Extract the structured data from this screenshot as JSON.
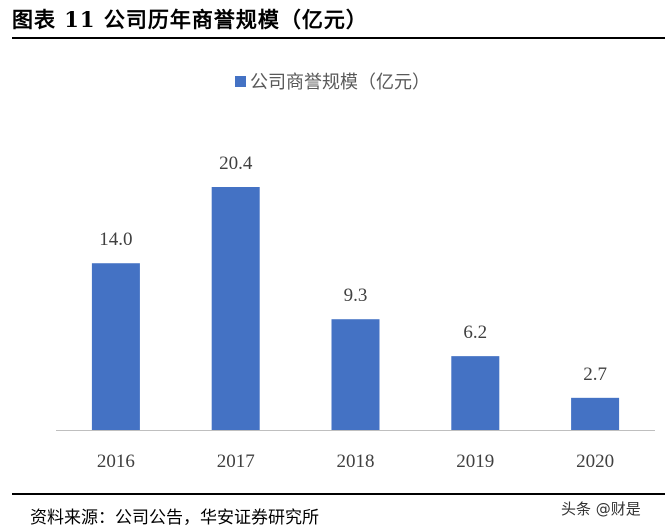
{
  "title": "图表 11 公司历年商誉规模（亿元）",
  "source": "资料来源：公司公告，华安证券研究所",
  "watermark": "头条 @财是",
  "colors": {
    "bar": "#4472C4",
    "axis": "#BFBFBF",
    "label": "#404040"
  },
  "chart_data": {
    "type": "bar",
    "title": "",
    "categories": [
      "2016",
      "2017",
      "2018",
      "2019",
      "2020"
    ],
    "series": [
      {
        "name": "公司商誉规模（亿元）",
        "values": [
          14.0,
          20.4,
          9.3,
          6.2,
          2.7
        ]
      }
    ],
    "data_labels": [
      "14.0",
      "20.4",
      "9.3",
      "6.2",
      "2.7"
    ],
    "xlabel": "",
    "ylabel": "",
    "ylim": [
      0,
      20.4
    ],
    "grid": false,
    "legend": "top-center"
  }
}
